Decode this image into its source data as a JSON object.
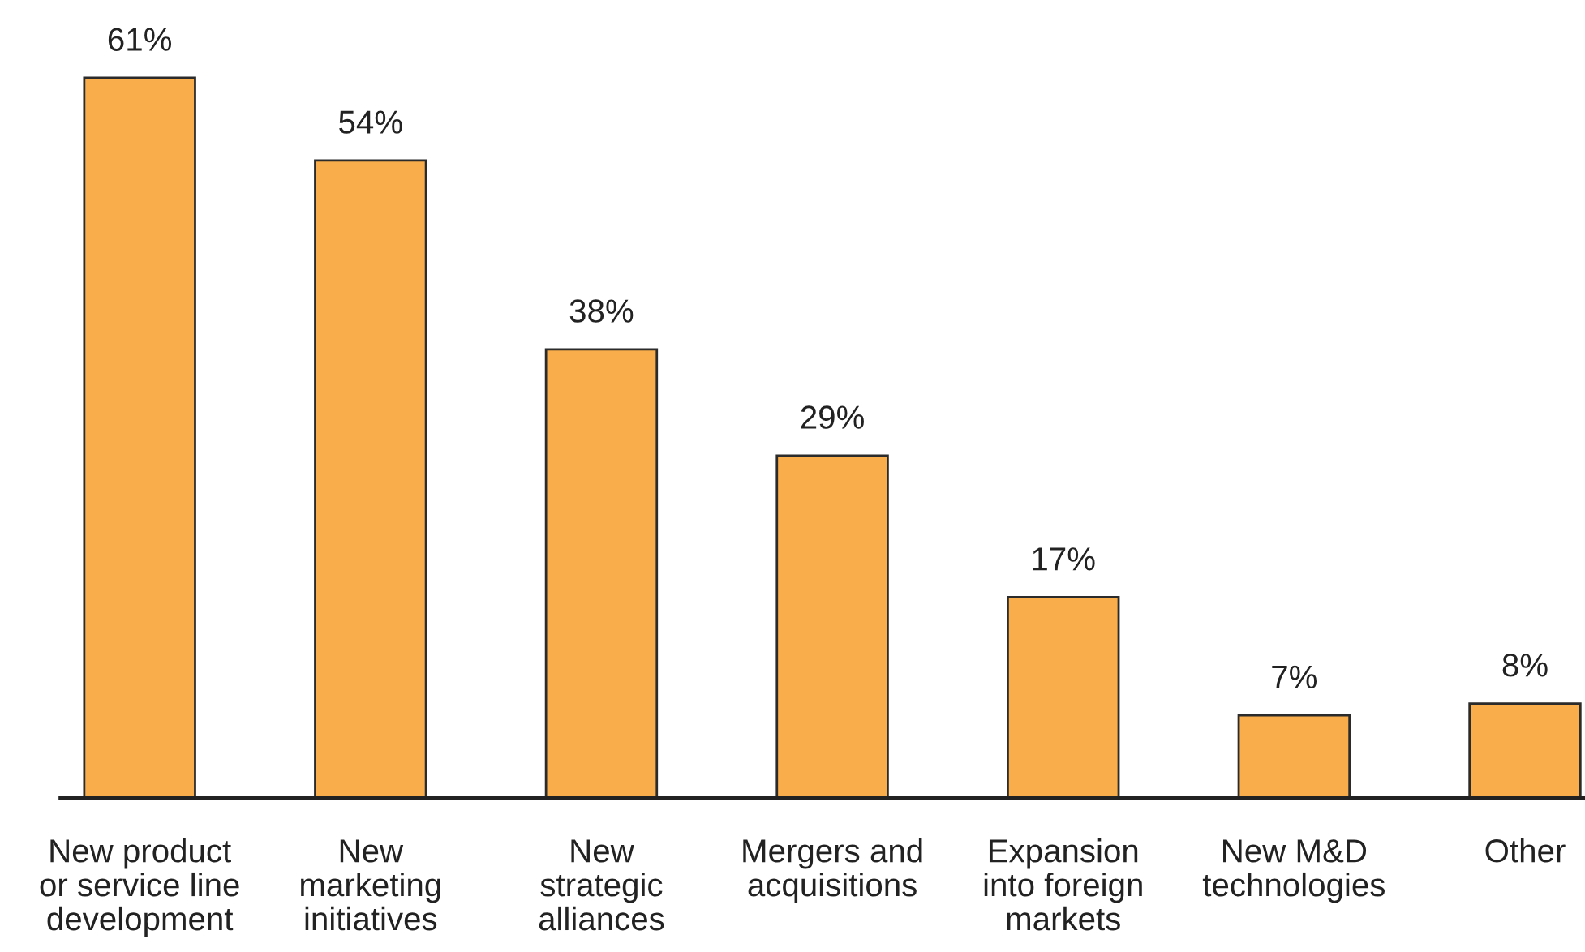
{
  "chart_data": {
    "type": "bar",
    "categories": [
      "New product\nor service line\ndevelopment",
      "New\nmarketing\ninitiatives",
      "New\nstrategic\nalliances",
      "Mergers and\nacquisitions",
      "Expansion\ninto foreign\nmarkets",
      "New M&D\ntechnologies",
      "Other"
    ],
    "values": [
      61,
      54,
      38,
      29,
      17,
      7,
      8
    ],
    "color": "#f9ae4b",
    "value_labels": [
      "61%",
      "54%",
      "38%",
      "29%",
      "17%",
      "7%",
      "8%"
    ],
    "grid": false,
    "legend": false
  }
}
